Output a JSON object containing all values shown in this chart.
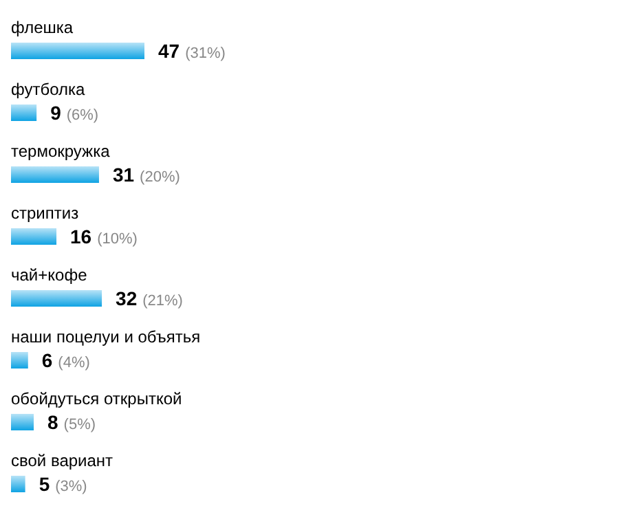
{
  "chart_data": {
    "type": "bar",
    "orientation": "horizontal",
    "categories": [
      "флешка",
      "футболка",
      "термокружка",
      "стриптиз",
      "чай+кофе",
      "наши поцелуи и объятья",
      "обойдуться открыткой",
      "свой вариант"
    ],
    "values": [
      47,
      9,
      31,
      16,
      32,
      6,
      8,
      5
    ],
    "color": "#0fa3e3",
    "value_labels": [
      "47 (31%)",
      "9 (6%)",
      "31 (20%)",
      "16 (10%)",
      "32 (21%)",
      "6 (4%)",
      "8 (5%)",
      "5 (3%)"
    ]
  }
}
